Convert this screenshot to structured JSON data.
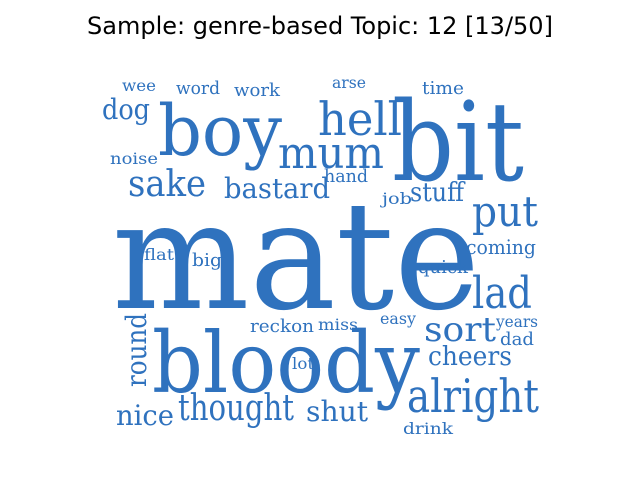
{
  "title": "Sample: genre-based Topic: 12 [13/50]",
  "colors": {
    "word": "#2f72be",
    "title": "#000000",
    "background": "#ffffff"
  },
  "words": [
    {
      "text": "mate"
    },
    {
      "text": "bloody"
    },
    {
      "text": "bit"
    },
    {
      "text": "boy"
    },
    {
      "text": "hell"
    },
    {
      "text": "mum"
    },
    {
      "text": "alright"
    },
    {
      "text": "sort"
    },
    {
      "text": "lad"
    },
    {
      "text": "put"
    },
    {
      "text": "sake"
    },
    {
      "text": "bastard"
    },
    {
      "text": "thought"
    },
    {
      "text": "nice"
    },
    {
      "text": "shut"
    },
    {
      "text": "round"
    },
    {
      "text": "cheers"
    },
    {
      "text": "stuff"
    },
    {
      "text": "dog"
    },
    {
      "text": "hand"
    },
    {
      "text": "coming"
    },
    {
      "text": "quick"
    },
    {
      "text": "reckon"
    },
    {
      "text": "miss"
    },
    {
      "text": "years"
    },
    {
      "text": "dad"
    },
    {
      "text": "easy"
    },
    {
      "text": "drink"
    },
    {
      "text": "lot"
    },
    {
      "text": "job"
    },
    {
      "text": "noise"
    },
    {
      "text": "wee"
    },
    {
      "text": "word"
    },
    {
      "text": "work"
    },
    {
      "text": "arse"
    },
    {
      "text": "time"
    },
    {
      "text": "flat"
    },
    {
      "text": "big"
    }
  ]
}
